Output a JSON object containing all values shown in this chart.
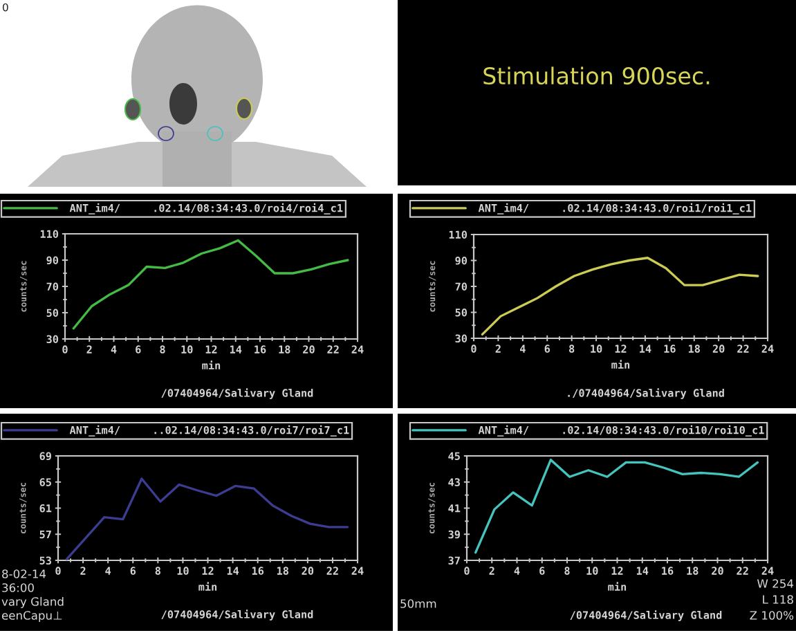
{
  "chart_data": [
    {
      "type": "other",
      "annotations": [
        "0"
      ]
    },
    {
      "type": "other",
      "title": "Stimulation 900sec."
    },
    {
      "type": "line",
      "x": [
        0.7,
        2.2,
        3.7,
        5.2,
        6.7,
        8.2,
        9.7,
        11.2,
        12.7,
        14.2,
        15.7,
        17.2,
        18.7,
        20.2,
        21.7,
        23.2
      ],
      "series": [
        {
          "name": "ANT_im4/     .02.14/08:34:43.0/roi4/roi4_c1",
          "color": "#44bb44",
          "values": [
            38,
            55,
            64,
            71,
            85,
            84,
            88,
            95,
            99,
            105,
            93,
            80,
            80,
            83,
            87,
            90
          ]
        }
      ],
      "xlim": [
        0,
        24
      ],
      "xticks": [
        0,
        2,
        4,
        6,
        8,
        10,
        12,
        14,
        16,
        18,
        20,
        22,
        24
      ],
      "ylim": [
        30,
        110
      ],
      "yticks": [
        30,
        50,
        70,
        90,
        110
      ],
      "xlabel": "min",
      "ylabel": "counts/sec",
      "legend": "top",
      "line_style": "solid",
      "annotations": [
        "/07404964/Salivary Gland"
      ]
    },
    {
      "type": "line",
      "x": [
        0.7,
        2.2,
        3.7,
        5.2,
        6.7,
        8.2,
        9.7,
        11.2,
        12.7,
        14.2,
        15.7,
        17.2,
        18.7,
        20.2,
        21.7,
        23.2
      ],
      "series": [
        {
          "name": "ANT_im4/     .02.14/08:34:43.0/roi1/roi1_c1",
          "color": "#cccc55",
          "values": [
            33,
            47,
            54,
            61,
            70,
            78,
            83,
            87,
            90,
            92,
            84,
            71,
            71,
            75,
            79,
            78
          ]
        }
      ],
      "xlim": [
        0,
        24
      ],
      "xticks": [
        0,
        2,
        4,
        6,
        8,
        10,
        12,
        14,
        16,
        18,
        20,
        22,
        24
      ],
      "ylim": [
        30,
        110
      ],
      "yticks": [
        30,
        50,
        70,
        90,
        110
      ],
      "xlabel": "min",
      "ylabel": "counts/sec",
      "legend": "top",
      "line_style": "solid",
      "annotations": [
        "./07404964/Salivary Gland"
      ]
    },
    {
      "type": "line",
      "x": [
        0.7,
        2.2,
        3.7,
        5.2,
        6.7,
        8.2,
        9.7,
        11.2,
        12.7,
        14.2,
        15.7,
        17.2,
        18.7,
        20.2,
        21.7,
        23.2
      ],
      "series": [
        {
          "name": "ANT_im4/     ..02.14/08:34:43.0/roi7/roi7_c1",
          "color": "#3c3c90",
          "values": [
            53.2,
            56.4,
            59.6,
            59.3,
            65.5,
            62,
            64.6,
            63.7,
            62.9,
            64.4,
            64,
            61.4,
            59.8,
            58.6,
            58.1,
            58.1
          ]
        }
      ],
      "xlim": [
        0,
        24
      ],
      "xticks": [
        0,
        2,
        4,
        6,
        8,
        10,
        12,
        14,
        16,
        18,
        20,
        22,
        24
      ],
      "ylim": [
        53,
        69
      ],
      "yticks": [
        53,
        57,
        61,
        65,
        69
      ],
      "xlabel": "min",
      "ylabel": "counts/sec",
      "legend": "top",
      "line_style": "solid",
      "annotations": [
        "/07404964/Salivary Gland",
        "8-02-14",
        "36:00",
        "vary Gland",
        "eenCapu⊥"
      ]
    },
    {
      "type": "line",
      "x": [
        0.7,
        2.2,
        3.7,
        5.2,
        6.7,
        8.2,
        9.7,
        11.2,
        12.7,
        14.2,
        15.7,
        17.2,
        18.7,
        20.2,
        21.7,
        23.2
      ],
      "series": [
        {
          "name": "ANT_im4/     .02.14/08:34:43.0/roi10/roi10_c1",
          "color": "#44c4bc",
          "values": [
            37.6,
            40.9,
            42.2,
            41.2,
            44.7,
            43.4,
            43.9,
            43.4,
            44.5,
            44.5,
            44.1,
            43.6,
            43.7,
            43.6,
            43.4,
            44.5
          ]
        }
      ],
      "xlim": [
        0,
        24
      ],
      "xticks": [
        0,
        2,
        4,
        6,
        8,
        10,
        12,
        14,
        16,
        18,
        20,
        22,
        24
      ],
      "ylim": [
        37,
        45
      ],
      "yticks": [
        37,
        39,
        41,
        43,
        45
      ],
      "xlabel": "min",
      "ylabel": "counts/sec",
      "legend": "top",
      "line_style": "solid",
      "annotations": [
        "/07404964/Salivary Gland",
        "50mm",
        "W 254",
        "L 118",
        "Z 100%"
      ]
    }
  ]
}
